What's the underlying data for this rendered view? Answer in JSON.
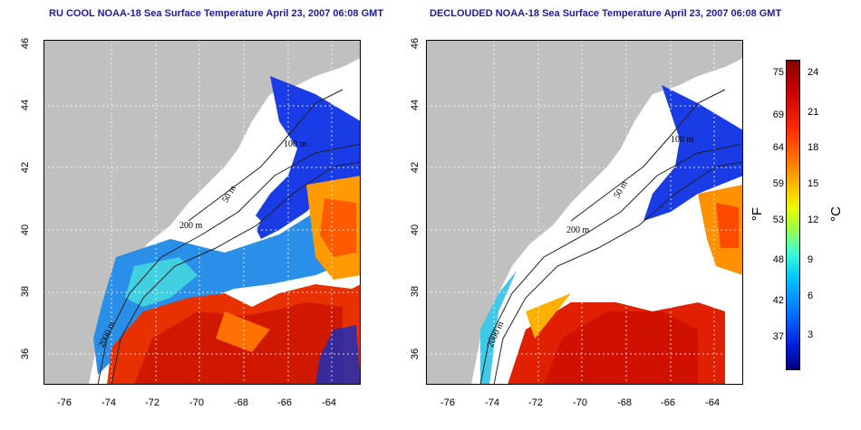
{
  "titles": {
    "left": "RU COOL NOAA-18 Sea Surface Temperature April 23, 2007 06:08 GMT",
    "right": "DECLOUDED NOAA-18 Sea Surface Temperature April 23, 2007 06:08 GMT"
  },
  "axes": {
    "lat_ticks": [
      "46",
      "44",
      "42",
      "40",
      "38",
      "36"
    ],
    "lon_ticks": [
      "-76",
      "-74",
      "-72",
      "-70",
      "-68",
      "-66",
      "-64"
    ]
  },
  "contour_labels": {
    "c100": "100 m",
    "c200": "200 m",
    "c50": "50 m",
    "c2000": "2000 m"
  },
  "colorbar": {
    "fahrenheit": [
      "75",
      "69",
      "64",
      "59",
      "53",
      "48",
      "42",
      "37"
    ],
    "celsius": [
      "24",
      "21",
      "18",
      "15",
      "12",
      "9",
      "6",
      "3"
    ],
    "unit_f": "°F",
    "unit_c": "°C"
  },
  "colors": {
    "land": "#c0c0c0",
    "cloud": "#ffffff",
    "warm": "#e02000",
    "cold": "#1030e0"
  }
}
